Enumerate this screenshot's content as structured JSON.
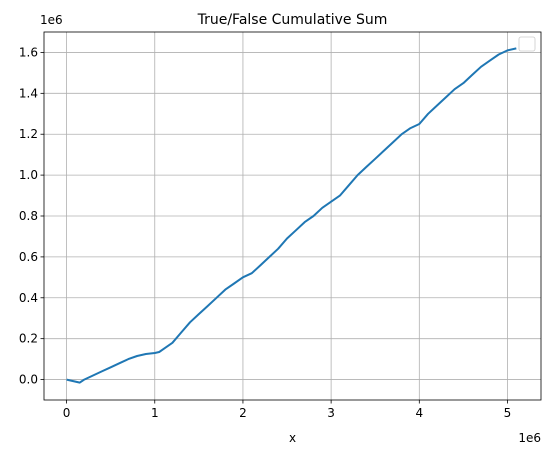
{
  "chart_data": {
    "type": "line",
    "title": "True/False Cumulative Sum",
    "xlabel": "x",
    "ylabel": "",
    "x_offset_label": "1e6",
    "y_offset_label": "1e6",
    "xlim": [
      -0.256,
      5.38
    ],
    "ylim": [
      -0.1,
      1.7
    ],
    "x_ticks": [
      0,
      1,
      2,
      3,
      4,
      5
    ],
    "x_tick_labels": [
      "0",
      "1",
      "2",
      "3",
      "4",
      "5"
    ],
    "y_ticks": [
      0.0,
      0.2,
      0.4,
      0.6,
      0.8,
      1.0,
      1.2,
      1.4,
      1.6
    ],
    "y_tick_labels": [
      "0.0",
      "0.2",
      "0.4",
      "0.6",
      "0.8",
      "1.0",
      "1.2",
      "1.4",
      "1.6"
    ],
    "grid": true,
    "legend": "upper right (empty)",
    "series": [
      {
        "color": "#1f77b4",
        "x": [
          0,
          0.05,
          0.1,
          0.15,
          0.2,
          0.3,
          0.4,
          0.5,
          0.6,
          0.7,
          0.8,
          0.9,
          1.0,
          1.05,
          1.1,
          1.2,
          1.3,
          1.4,
          1.5,
          1.6,
          1.7,
          1.8,
          1.9,
          2.0,
          2.1,
          2.2,
          2.3,
          2.4,
          2.5,
          2.6,
          2.7,
          2.8,
          2.9,
          3.0,
          3.1,
          3.2,
          3.3,
          3.4,
          3.5,
          3.6,
          3.7,
          3.8,
          3.9,
          4.0,
          4.1,
          4.2,
          4.3,
          4.4,
          4.5,
          4.6,
          4.7,
          4.8,
          4.9,
          5.0,
          5.1
        ],
        "y": [
          0.0,
          -0.005,
          -0.01,
          -0.015,
          0.0,
          0.02,
          0.04,
          0.06,
          0.08,
          0.1,
          0.115,
          0.125,
          0.13,
          0.135,
          0.15,
          0.18,
          0.23,
          0.28,
          0.32,
          0.36,
          0.4,
          0.44,
          0.47,
          0.5,
          0.52,
          0.56,
          0.6,
          0.64,
          0.69,
          0.73,
          0.77,
          0.8,
          0.84,
          0.87,
          0.9,
          0.95,
          1.0,
          1.04,
          1.08,
          1.12,
          1.16,
          1.2,
          1.23,
          1.25,
          1.3,
          1.34,
          1.38,
          1.42,
          1.45,
          1.49,
          1.53,
          1.56,
          1.59,
          1.61,
          1.62
        ]
      }
    ]
  }
}
